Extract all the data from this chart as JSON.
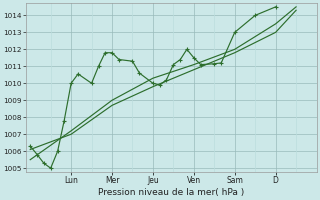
{
  "xlabel": "Pression niveau de la mer( hPa )",
  "bg_color": "#cce8e8",
  "line_color": "#2d6e2d",
  "grid_major_color": "#99bbbb",
  "grid_minor_color": "#bbdddd",
  "ylim": [
    1004.8,
    1014.7
  ],
  "yticks": [
    1005,
    1006,
    1007,
    1008,
    1009,
    1010,
    1011,
    1012,
    1013,
    1014
  ],
  "xlim": [
    -0.1,
    7.0
  ],
  "xtick_positions": [
    1.0,
    2.0,
    3.0,
    4.0,
    5.0,
    6.0
  ],
  "xtick_labels": [
    "Lun",
    "Mer",
    "Jeu",
    "Ven",
    "Sam",
    "D"
  ],
  "minor_xtick_positions": [
    0.5,
    1.5,
    2.5,
    3.5,
    4.5,
    5.5,
    6.5
  ],
  "line1_x": [
    0.0,
    0.17,
    0.33,
    0.5,
    0.67,
    0.83,
    1.0,
    1.17,
    1.5,
    1.67,
    1.83,
    2.0,
    2.17,
    2.5,
    2.67,
    3.0,
    3.17,
    3.33,
    3.5,
    3.67,
    3.83,
    4.0,
    4.17,
    4.5,
    4.67,
    5.0,
    5.5,
    6.0
  ],
  "line1_y": [
    1006.3,
    1005.8,
    1005.3,
    1005.0,
    1006.0,
    1007.8,
    1010.0,
    1010.55,
    1010.0,
    1011.0,
    1011.8,
    1011.8,
    1011.4,
    1011.3,
    1010.6,
    1010.0,
    1009.9,
    1010.2,
    1011.1,
    1011.4,
    1012.0,
    1011.5,
    1011.1,
    1011.15,
    1011.2,
    1013.0,
    1014.0,
    1014.5
  ],
  "line2_x": [
    0.0,
    1.0,
    2.0,
    3.0,
    4.0,
    5.0,
    6.0,
    6.5
  ],
  "line2_y": [
    1005.5,
    1007.2,
    1009.0,
    1010.3,
    1011.1,
    1012.0,
    1013.5,
    1014.5
  ],
  "line3_x": [
    0.0,
    1.0,
    2.0,
    3.0,
    4.0,
    5.0,
    6.0,
    6.5
  ],
  "line3_y": [
    1006.1,
    1007.0,
    1008.7,
    1009.8,
    1010.8,
    1011.8,
    1013.0,
    1014.3
  ],
  "vgrid_positions": [
    0.5,
    1.0,
    1.5,
    2.0,
    2.5,
    3.0,
    3.5,
    4.0,
    4.5,
    5.0,
    5.5,
    6.0,
    6.5
  ],
  "vgrid_major": [
    1.0,
    2.0,
    3.0,
    4.0,
    5.0,
    6.0
  ]
}
